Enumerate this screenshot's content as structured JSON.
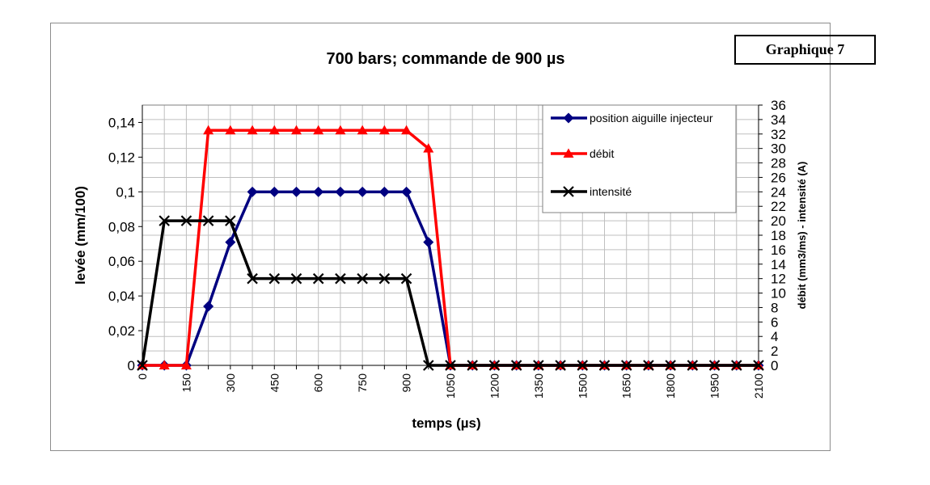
{
  "badge": "Graphique 7",
  "chart_data": {
    "type": "line",
    "title": "700 bars; commande de 900 µs",
    "xlabel": "temps (µs)",
    "ylabel": "levée (mm/100)",
    "y2label": "débit (mm3/ms) - intensité (A)",
    "xlim": [
      0,
      2100
    ],
    "ylim": [
      0,
      0.15
    ],
    "y2lim": [
      0,
      36
    ],
    "grid": true,
    "legend_position": "top-right",
    "x_ticks": [
      "0",
      "150",
      "300",
      "450",
      "600",
      "750",
      "900",
      "1050",
      "1200",
      "1350",
      "1500",
      "1650",
      "1800",
      "1950",
      "2100"
    ],
    "y_ticks": [
      "0",
      "0,02",
      "0,04",
      "0,06",
      "0,08",
      "0,1",
      "0,12",
      "0,14"
    ],
    "y2_ticks": [
      "0",
      "2",
      "4",
      "6",
      "8",
      "10",
      "12",
      "14",
      "16",
      "18",
      "20",
      "22",
      "24",
      "26",
      "28",
      "30",
      "32",
      "34",
      "36"
    ],
    "x": [
      0,
      75,
      150,
      225,
      300,
      375,
      450,
      525,
      600,
      675,
      750,
      825,
      900,
      975,
      1050,
      1125,
      1200,
      1275,
      1350,
      1425,
      1500,
      1575,
      1650,
      1725,
      1800,
      1875,
      1950,
      2025,
      2100
    ],
    "series": [
      {
        "name": "position aiguille injecteur",
        "axis": "left",
        "color": "#000080",
        "marker": "diamond",
        "values": [
          0,
          0,
          0,
          0.034,
          0.071,
          0.1,
          0.1,
          0.1,
          0.1,
          0.1,
          0.1,
          0.1,
          0.1,
          0.071,
          0,
          0,
          0,
          0,
          0,
          0,
          0,
          0,
          0,
          0,
          0,
          0,
          0,
          0,
          0
        ]
      },
      {
        "name": "débit",
        "axis": "right",
        "color": "#ff0000",
        "marker": "triangle",
        "values": [
          0,
          0,
          0,
          32.5,
          32.5,
          32.5,
          32.5,
          32.5,
          32.5,
          32.5,
          32.5,
          32.5,
          32.5,
          30,
          0,
          0,
          0,
          0,
          0,
          0,
          0,
          0,
          0,
          0,
          0,
          0,
          0,
          0,
          0
        ]
      },
      {
        "name": "intensité",
        "axis": "right",
        "color": "#000000",
        "marker": "x",
        "values": [
          0,
          20,
          20,
          20,
          20,
          12,
          12,
          12,
          12,
          12,
          12,
          12,
          12,
          0,
          0,
          0,
          0,
          0,
          0,
          0,
          0,
          0,
          0,
          0,
          0,
          0,
          0,
          0,
          0
        ]
      }
    ]
  }
}
